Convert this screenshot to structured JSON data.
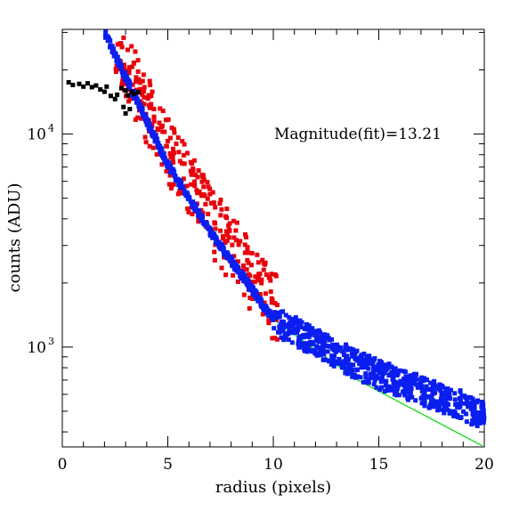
{
  "chart_data": {
    "type": "scatter",
    "title": "",
    "xlabel": "radius (pixels)",
    "ylabel": "counts (ADU)",
    "xlim": [
      0,
      20
    ],
    "ylim": [
      340,
      31000
    ],
    "yscale": "log",
    "grid": false,
    "x_ticks": [
      {
        "value": 0,
        "label": "0"
      },
      {
        "value": 5,
        "label": "5"
      },
      {
        "value": 10,
        "label": "10"
      },
      {
        "value": 15,
        "label": "15"
      },
      {
        "value": 20,
        "label": "20"
      }
    ],
    "y_ticks": [
      {
        "value": 1000,
        "base": "10",
        "exp": "3"
      },
      {
        "value": 10000,
        "base": "10",
        "exp": "4"
      }
    ],
    "annotations": [
      {
        "text": "Magnitude(fit)=13.21",
        "x": 12.8,
        "y": 10000
      }
    ],
    "colors": {
      "core": "#000000",
      "profile_fitted": "#e8000b",
      "profile_outer": "#0a1ef0",
      "fit_line": "#00dd00"
    },
    "series": [
      {
        "role": "core",
        "color": "#000000",
        "points": [
          [
            0.3,
            17500
          ],
          [
            0.5,
            17000
          ],
          [
            0.8,
            17200
          ],
          [
            1.0,
            16700
          ],
          [
            1.2,
            17300
          ],
          [
            1.4,
            16600
          ],
          [
            1.6,
            16900
          ],
          [
            1.8,
            16200
          ],
          [
            2.0,
            15800
          ],
          [
            2.1,
            16700
          ],
          [
            2.3,
            15100
          ],
          [
            2.5,
            14600
          ],
          [
            2.6,
            15300
          ],
          [
            2.8,
            16400
          ],
          [
            3.0,
            16000
          ],
          [
            3.1,
            15200
          ],
          [
            3.3,
            15800
          ],
          [
            3.4,
            15400
          ],
          [
            3.6,
            15700
          ],
          [
            2.9,
            13400
          ],
          [
            3.0,
            12500
          ],
          [
            3.2,
            13100
          ]
        ]
      },
      {
        "role": "profile_fitted",
        "color": "#e8000b",
        "x_range": [
          2.5,
          10.2
        ],
        "model": "fit_curve_with_scatter",
        "scatter_factor": [
          0.78,
          1.65
        ],
        "n_points": 320
      },
      {
        "role": "profile_outer",
        "color": "#0a1ef0",
        "x_range": [
          2.0,
          20.0
        ],
        "model": "profile_wings_above_fit",
        "n_points": 1100,
        "values_at": [
          [
            10,
            1350
          ],
          [
            12,
            1050
          ],
          [
            14,
            820
          ],
          [
            16,
            680
          ],
          [
            18,
            580
          ],
          [
            20,
            480
          ]
        ]
      },
      {
        "role": "fit_line",
        "color": "#00dd00",
        "type": "line",
        "model": "power_law",
        "points": [
          [
            2.0,
            30000
          ],
          [
            3.0,
            18500
          ],
          [
            5.0,
            7200
          ],
          [
            7.0,
            3500
          ],
          [
            10.0,
            1350
          ],
          [
            14.0,
            700
          ],
          [
            20.0,
            340
          ]
        ]
      }
    ]
  }
}
